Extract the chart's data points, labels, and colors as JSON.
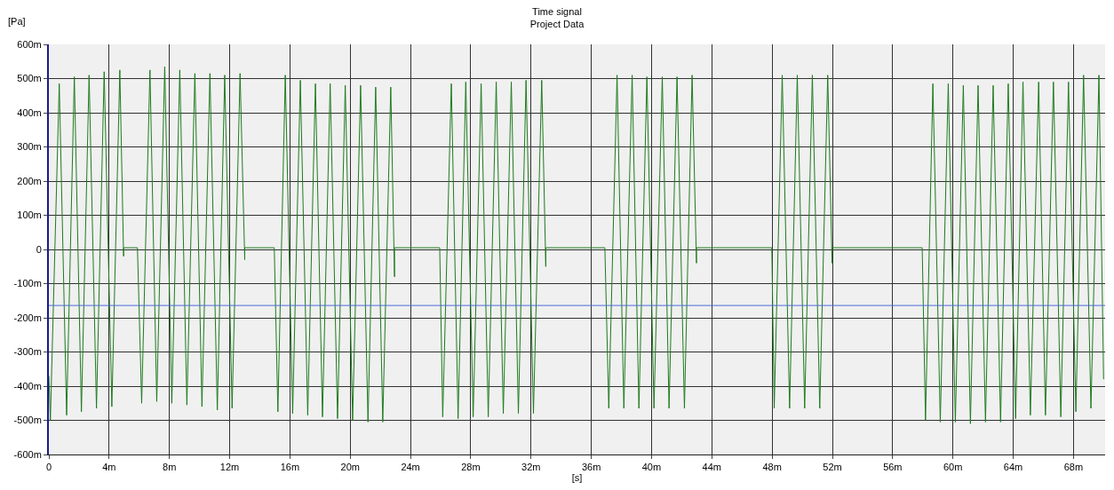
{
  "chart_data": {
    "type": "line",
    "title": "Time signal",
    "subtitle": "Project Data",
    "xlabel": "[s]",
    "ylabel": "[Pa]",
    "series": [
      {
        "color": "#1e7b1e",
        "x": [
          0,
          0.1,
          0.69,
          1.18,
          1.69,
          2.16,
          2.67,
          3.16,
          3.67,
          4.18,
          4.71,
          4.96,
          4.96,
          5.88,
          6.16,
          6.71,
          7.16,
          7.69,
          8.16,
          8.69,
          9.16,
          9.69,
          10.16,
          10.69,
          11.18,
          11.67,
          12.16,
          12.69,
          13.0,
          13.0,
          14.96,
          15.2,
          15.69,
          16.18,
          16.69,
          17.18,
          17.69,
          18.16,
          18.67,
          19.16,
          19.67,
          20.16,
          20.69,
          21.18,
          21.69,
          22.16,
          22.69,
          22.94,
          22.94,
          25.94,
          26.14,
          26.71,
          27.16,
          27.67,
          28.16,
          28.69,
          29.16,
          29.69,
          30.16,
          30.69,
          31.16,
          31.67,
          32.16,
          32.71,
          32.98,
          32.98,
          36.9,
          37.16,
          37.71,
          38.16,
          38.71,
          39.16,
          39.69,
          40.16,
          40.71,
          41.16,
          41.69,
          42.18,
          42.69,
          42.98,
          42.98,
          47.98,
          48.14,
          48.67,
          49.16,
          49.67,
          50.16,
          50.67,
          51.16,
          51.69,
          51.98,
          51.98,
          57.96,
          58.18,
          58.67,
          59.16,
          59.69,
          60.16,
          60.69,
          61.16,
          61.67,
          62.16,
          62.67,
          63.16,
          63.67,
          64.16,
          64.65,
          65.14,
          65.69,
          66.14,
          66.67,
          67.16,
          67.67,
          68.16,
          68.67,
          69.16,
          69.69,
          70.0
        ],
        "values": [
          -370,
          -500,
          485,
          -485,
          505,
          -475,
          510,
          -465,
          520,
          -460,
          525,
          -20,
          5,
          5,
          -450,
          525,
          -445,
          535,
          -450,
          525,
          -455,
          515,
          -460,
          515,
          -470,
          510,
          -465,
          515,
          -30,
          5,
          5,
          -475,
          510,
          -480,
          495,
          -485,
          485,
          -490,
          485,
          -495,
          480,
          -500,
          480,
          -505,
          475,
          -505,
          475,
          -80,
          5,
          5,
          -490,
          485,
          -495,
          490,
          -490,
          485,
          -490,
          490,
          -480,
          490,
          -480,
          495,
          -480,
          495,
          -50,
          5,
          5,
          -465,
          510,
          -465,
          510,
          -465,
          505,
          -465,
          505,
          -465,
          505,
          -465,
          510,
          -40,
          5,
          5,
          -465,
          510,
          -465,
          510,
          -465,
          510,
          -465,
          510,
          -40,
          5,
          5,
          -500,
          485,
          -505,
          485,
          -505,
          480,
          -510,
          480,
          -505,
          480,
          -505,
          485,
          -495,
          490,
          -485,
          490,
          -485,
          490,
          -490,
          490,
          -475,
          510,
          -465,
          510,
          -380
        ]
      }
    ],
    "ref_lines": [
      {
        "axis": "y",
        "value": -164,
        "color": "#4a6fd8"
      }
    ],
    "xlim": [
      0,
      70.1
    ],
    "xticks": [
      0,
      {
        "value": 4,
        "label": "4m"
      },
      {
        "value": 8,
        "label": "8m"
      },
      {
        "value": 12,
        "label": "12m"
      },
      {
        "value": 16,
        "label": "16m"
      },
      {
        "value": 20,
        "label": "20m"
      },
      {
        "value": 24,
        "label": "24m"
      },
      {
        "value": 28,
        "label": "28m"
      },
      {
        "value": 32,
        "label": "32m"
      },
      {
        "value": 36,
        "label": "36m"
      },
      {
        "value": 40,
        "label": "40m"
      },
      {
        "value": 44,
        "label": "44m"
      },
      {
        "value": 48,
        "label": "48m"
      },
      {
        "value": 52,
        "label": "52m"
      },
      {
        "value": 56,
        "label": "56m"
      },
      {
        "value": 60,
        "label": "60m"
      },
      {
        "value": 64,
        "label": "64m"
      },
      {
        "value": 68,
        "label": "68m"
      }
    ],
    "ylim": [
      -600,
      600
    ],
    "yticks": [
      {
        "value": -600,
        "label": "-600m"
      },
      {
        "value": -500,
        "label": "-500m"
      },
      {
        "value": -400,
        "label": "-400m"
      },
      {
        "value": -300,
        "label": "-300m"
      },
      {
        "value": -200,
        "label": "-200m"
      },
      {
        "value": -100,
        "label": "-100m"
      },
      0,
      {
        "value": 100,
        "label": "100m"
      },
      {
        "value": 200,
        "label": "200m"
      },
      {
        "value": 300,
        "label": "300m"
      },
      {
        "value": 400,
        "label": "400m"
      },
      {
        "value": 500,
        "label": "500m"
      },
      {
        "value": 600,
        "label": "600m"
      }
    ],
    "grid": true,
    "marker": "none",
    "line_style": "solid"
  }
}
